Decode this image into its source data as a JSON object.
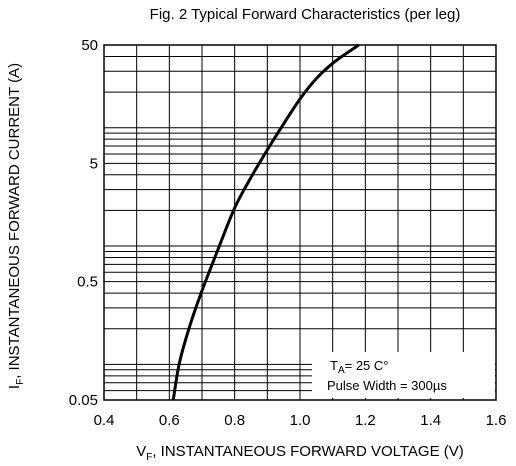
{
  "chart_data": {
    "type": "line",
    "title": "Fig. 2 Typical Forward Characteristics (per leg)",
    "xlabel": {
      "main": "V",
      "sub": "F",
      "rest": ", INSTANTANEOUS FORWARD VOLTAGE (V)"
    },
    "ylabel": {
      "main": "I",
      "sub": "F",
      "rest": ", INSTANTANEOUS FORWARD CURRENT (A)"
    },
    "x_scale": "linear",
    "y_scale": "log",
    "xlim": [
      0.4,
      1.6
    ],
    "ylim": [
      0.05,
      50
    ],
    "x_ticks": [
      "0.4",
      "0.6",
      "0.8",
      "1.0",
      "1.2",
      "1.4",
      "1.6"
    ],
    "x_tick_values": [
      0.4,
      0.6,
      0.8,
      1.0,
      1.2,
      1.4,
      1.6
    ],
    "y_ticks": [
      "0.05",
      "0.5",
      "5",
      "50"
    ],
    "y_tick_values": [
      0.05,
      0.5,
      5,
      50
    ],
    "grid": true,
    "series": [
      {
        "x": [
          0.612,
          0.63,
          0.66,
          0.7,
          0.75,
          0.8,
          0.85,
          0.9,
          0.95,
          1.0,
          1.05,
          1.1,
          1.15,
          1.18
        ],
        "y": [
          0.05,
          0.1,
          0.2,
          0.42,
          0.95,
          2.1,
          3.8,
          6.5,
          10.8,
          17.5,
          26,
          35,
          44,
          50
        ]
      }
    ],
    "annotations": {
      "temp": {
        "main": "T",
        "sub": "A",
        "rest": "= 25 C°"
      },
      "pulse": "Pulse Width = 300µs"
    },
    "colors": {
      "curve": "#000000",
      "grid": "#000000",
      "background": "#ffffff"
    }
  }
}
